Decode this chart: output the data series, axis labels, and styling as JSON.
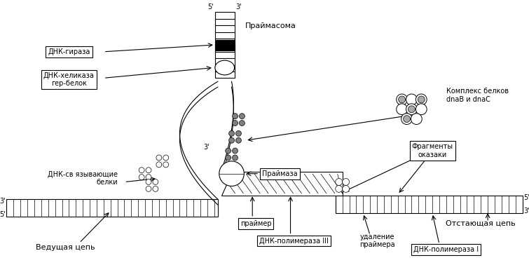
{
  "title": "",
  "background_color": "#ffffff",
  "text_color": "#000000",
  "labels": {
    "primasome": "Праймасома",
    "dna_gyrase": "ДНК-гираза",
    "dna_helicase": "ДНК-хеликаза\nгер-белок",
    "ssb_proteins": "ДНК-св язывающие\nбелки",
    "primase": "Праймаза",
    "dnaB_dnaC": "Комплекс белков\ndnaB и dnaC",
    "okazaki": "Фрагменты\nоказаки",
    "primer": "праймер",
    "dna_pol3": "ДНК-полимераза III",
    "primer_removal": "удаление\nпраймера",
    "dna_pol1": "ДНК-полимераза I",
    "leading_strand": "Ведущая цепь",
    "lagging_strand": "Отстающая цепь",
    "five_prime": "5'",
    "three_prime": "3'"
  }
}
